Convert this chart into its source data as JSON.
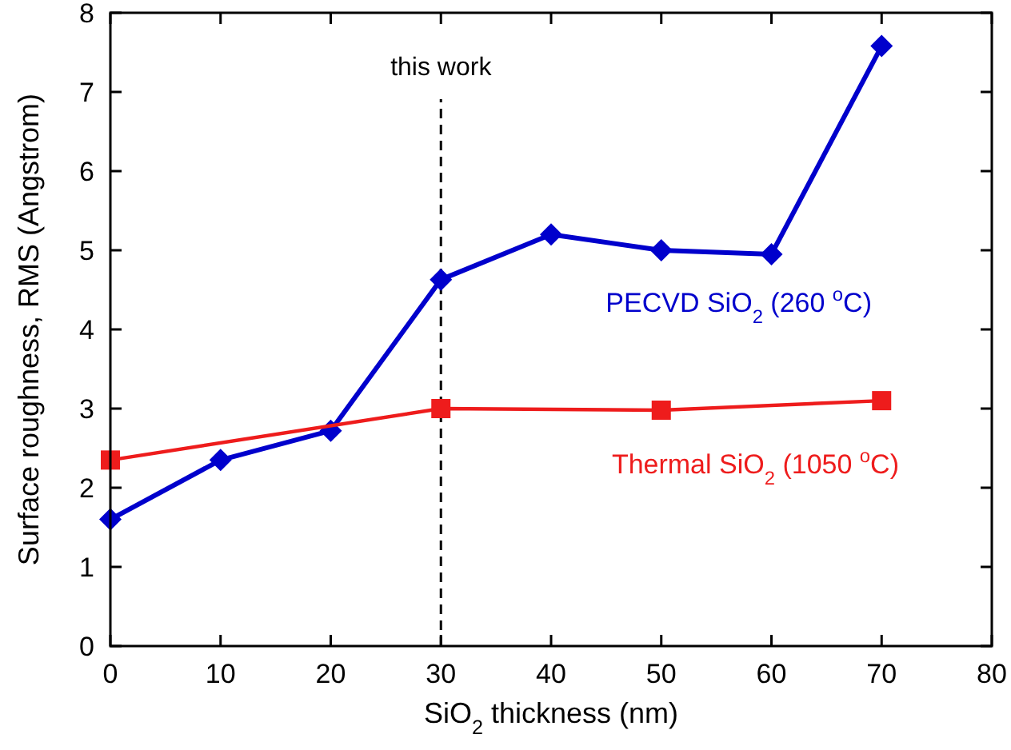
{
  "chart_data": {
    "type": "line",
    "xlabel": "SiO$_{2}$ thickness (nm)",
    "ylabel": "Surface roughness, RMS (Angstrom)",
    "xlim": [
      0,
      80
    ],
    "xticks": [
      0,
      10,
      20,
      30,
      40,
      50,
      60,
      70,
      80
    ],
    "ylim": [
      0,
      8
    ],
    "yticks": [
      0,
      1,
      2,
      3,
      4,
      5,
      6,
      7,
      8
    ],
    "grid": false,
    "series": [
      {
        "name": "PECVD SiO$_{2}$ (260 $^{o}$C)",
        "color": "#0000cc",
        "marker": "diamond",
        "x": [
          0,
          10,
          20,
          30,
          40,
          50,
          60,
          70
        ],
        "values": [
          1.6,
          2.35,
          2.72,
          4.63,
          5.2,
          5.0,
          4.95,
          7.58
        ]
      },
      {
        "name": "Thermal SiO$_{2}$ (1050 $^{o}$C)",
        "color": "#ee1c1c",
        "marker": "square",
        "x": [
          0,
          30,
          50,
          70
        ],
        "values": [
          2.35,
          3.0,
          2.98,
          3.1
        ]
      }
    ],
    "ref_lines": [
      {
        "axis": "x",
        "value": 30,
        "label": "this work",
        "color": "#000000",
        "line_style": "dashed"
      }
    ]
  }
}
